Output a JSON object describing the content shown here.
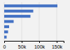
{
  "chart_data": {
    "type": "bar",
    "orientation": "horizontal",
    "categories": [
      null,
      null,
      null,
      null,
      null,
      null,
      null
    ],
    "values": [
      152000,
      83000,
      75000,
      27000,
      14000,
      11000,
      7000
    ],
    "color": "#4472C4",
    "xlim": [
      0,
      170000
    ],
    "xticks": [
      0,
      {
        "value": 50000,
        "label": "50k"
      },
      {
        "value": 100000,
        "label": "100k"
      },
      {
        "value": 150000,
        "label": "150k"
      }
    ],
    "grid": true
  }
}
